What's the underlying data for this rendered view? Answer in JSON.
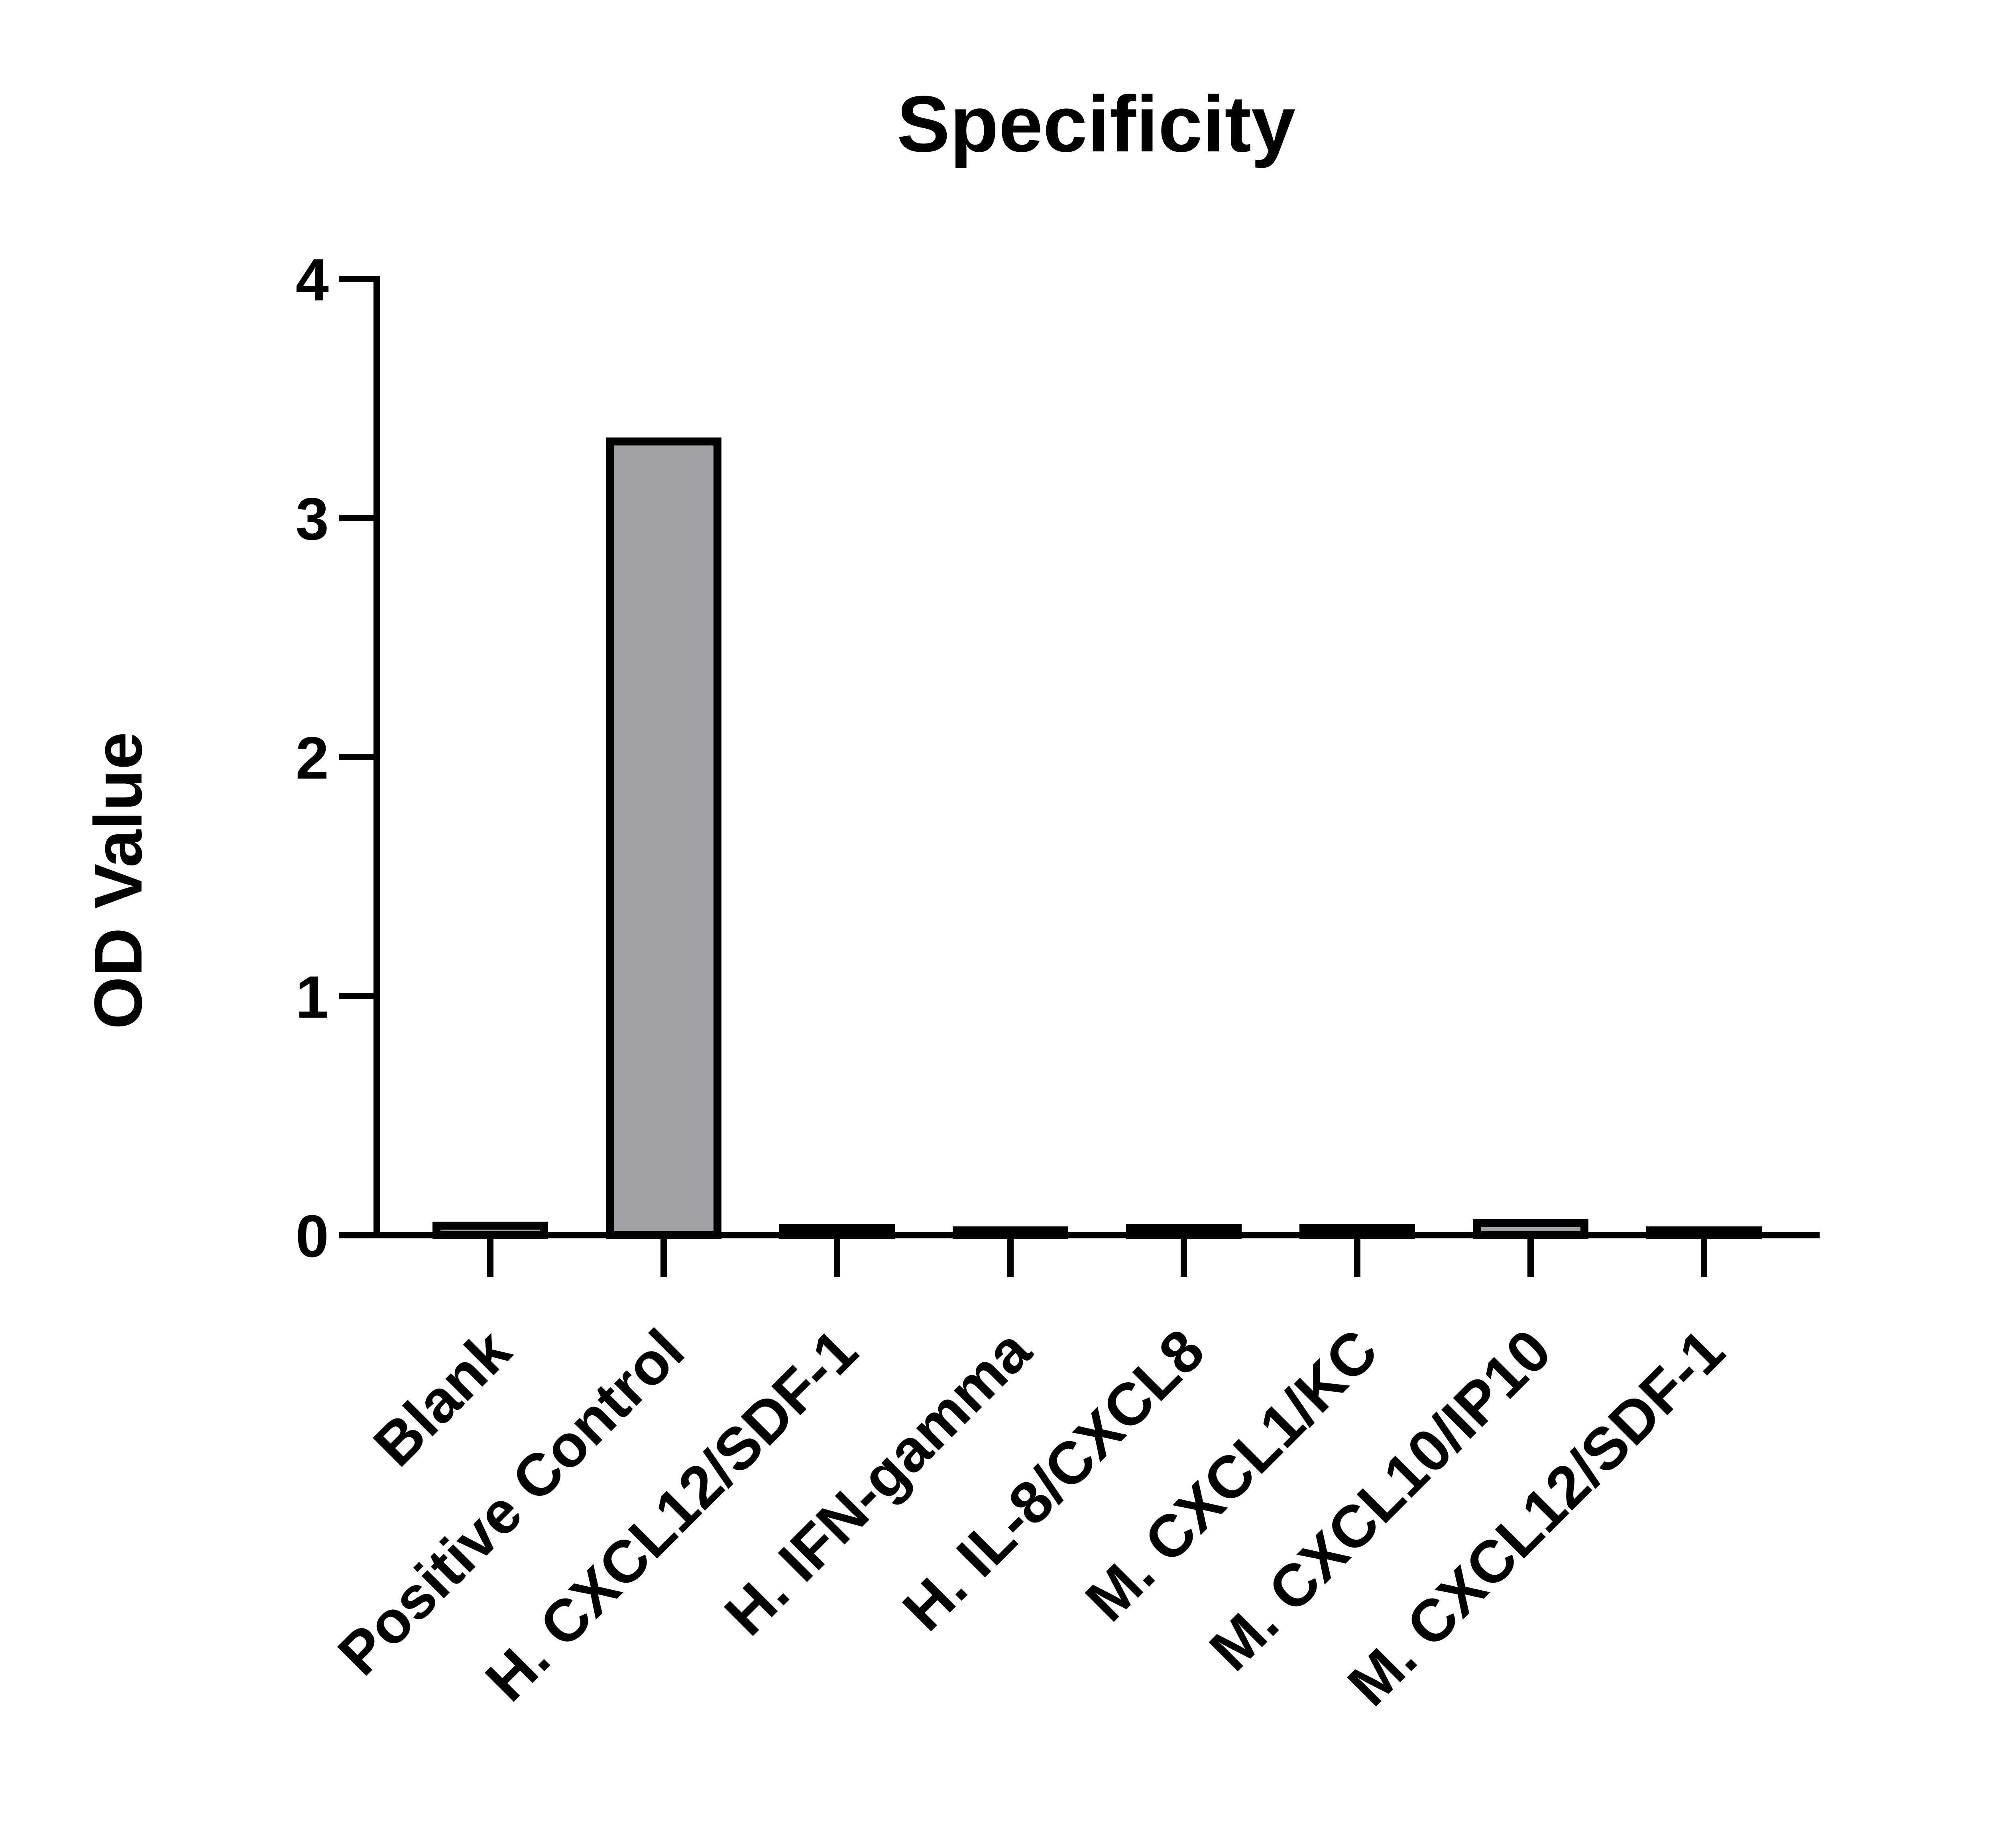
{
  "chart_data": {
    "type": "bar",
    "title": "Specificity",
    "xlabel": "",
    "ylabel": "OD Value",
    "ylim": [
      0,
      4
    ],
    "yticks": [
      0,
      1,
      2,
      3,
      4
    ],
    "categories": [
      "Blank",
      "Positive Control",
      "H. CXCL12/SDF-1",
      "H. IFN-gamma",
      "H. IL-8/CXCL8",
      "M. CXCL1/KC",
      "M. CXCL10/IP10",
      "M. CXCL12/SDF-1"
    ],
    "values": [
      0.04,
      3.32,
      0.03,
      0.02,
      0.03,
      0.03,
      0.05,
      0.02
    ],
    "bar_color": "#a2a1a6",
    "edge_color": "#000000",
    "grid": false,
    "legend": "none"
  }
}
